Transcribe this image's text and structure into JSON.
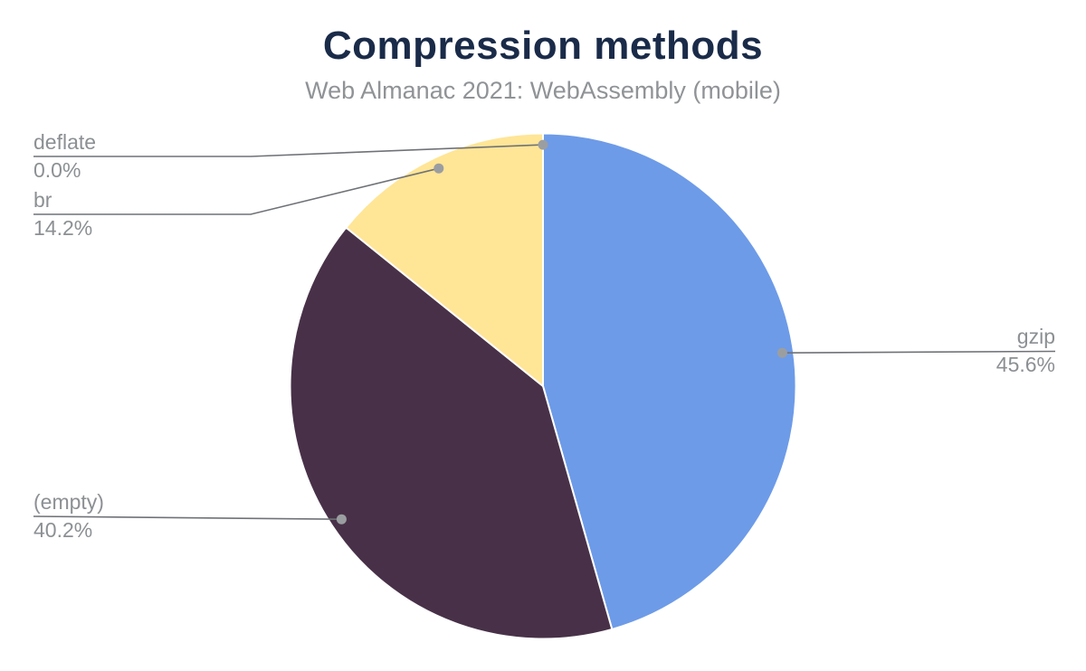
{
  "chart_data": {
    "type": "pie",
    "title": "Compression methods",
    "subtitle": "Web Almanac 2021: WebAssembly (mobile)",
    "unit": "%",
    "direction": "clockwise",
    "start_angle_deg": 0,
    "legend_position": "outside-callouts",
    "background_color": "#ffffff",
    "title_color": "#1a2b49",
    "subtitle_color": "#909396",
    "label_text_color": "#8c9093",
    "slice_border_color": "#ffffff",
    "leader_line_color": "#6f7276",
    "marker_dot_color": "#9b9ea1",
    "slices": [
      {
        "key": "gzip",
        "label": "gzip",
        "value": 45.6,
        "display": "45.6%",
        "color": "#6d9be8"
      },
      {
        "key": "empty",
        "label": "(empty)",
        "value": 40.2,
        "display": "40.2%",
        "color": "#483148"
      },
      {
        "key": "br",
        "label": "br",
        "value": 14.2,
        "display": "14.2%",
        "color": "#ffe596"
      },
      {
        "key": "deflate",
        "label": "deflate",
        "value": 0.0,
        "display": "0.0%",
        "color": "#9b9ea1"
      }
    ]
  }
}
